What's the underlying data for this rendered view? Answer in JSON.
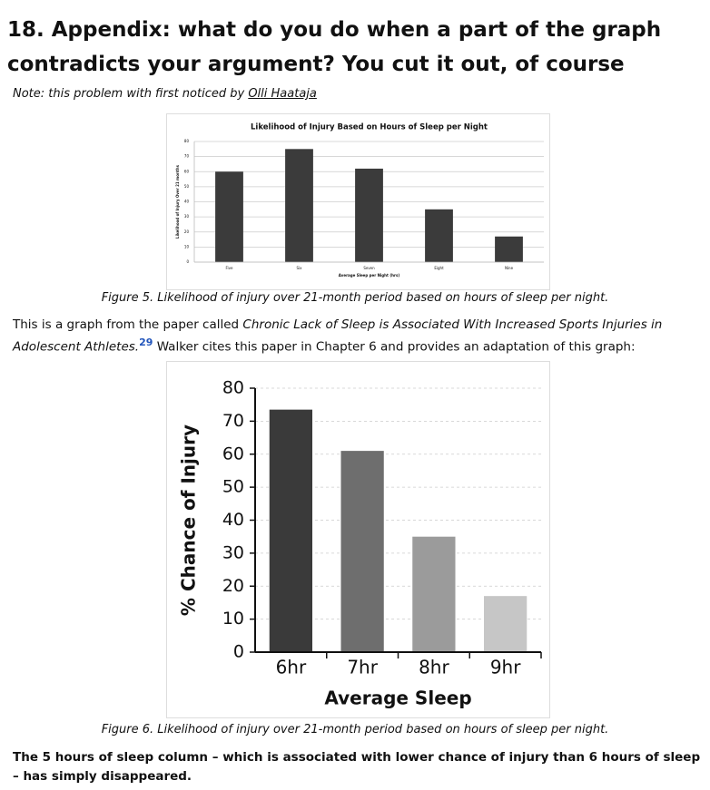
{
  "heading": "18. Appendix: what do you do when a part of the graph contradicts your argument? You cut it out, of course",
  "note": {
    "text": "Note: this problem with first noticed by ",
    "link": "Olli Haataja"
  },
  "paragraph": {
    "before": "This is a graph from the paper called ",
    "italic": "Chronic Lack of Sleep is Associated With Increased Sports Injuries in Adolescent Athletes.",
    "sup": "29",
    "after": " Walker cites this paper in Chapter 6 and provides an adaptation of this graph:"
  },
  "conclusion": "The 5 hours of sleep column – which is associated with lower chance of injury than 6 hours of sleep – has simply disappeared.",
  "chart_data": [
    {
      "type": "bar",
      "title": "Likelihood of Injury Based on Hours of Sleep per Night",
      "x_label": "Average Sleep per Night (hrs)",
      "y_label": "Likelihood of Injury Over 21 months",
      "categories": [
        "Five",
        "Six",
        "Seven",
        "Eight",
        "Nine"
      ],
      "values": [
        60,
        75,
        62,
        35,
        17
      ],
      "colors": [
        "#3b3b3b",
        "#3b3b3b",
        "#3b3b3b",
        "#3b3b3b",
        "#3b3b3b"
      ],
      "ylim": [
        0,
        80
      ],
      "yticks": [
        0,
        10,
        20,
        30,
        40,
        50,
        60,
        70,
        80
      ],
      "grid": true,
      "caption": "Figure 5. Likelihood of injury over 21-month period based on hours of sleep per night."
    },
    {
      "type": "bar",
      "x_label": "Average Sleep",
      "y_label": "% Chance of Injury",
      "categories": [
        "6hr",
        "7hr",
        "8hr",
        "9hr"
      ],
      "values": [
        73.5,
        61,
        35,
        17
      ],
      "colors": [
        "#3a3a3a",
        "#6e6e6e",
        "#9b9b9b",
        "#c6c6c6"
      ],
      "ylim": [
        0,
        80
      ],
      "yticks": [
        0,
        10,
        20,
        30,
        40,
        50,
        60,
        70,
        80
      ],
      "grid": true,
      "caption": "Figure 6. Likelihood of injury over 21-month period based on hours of sleep per night."
    }
  ]
}
